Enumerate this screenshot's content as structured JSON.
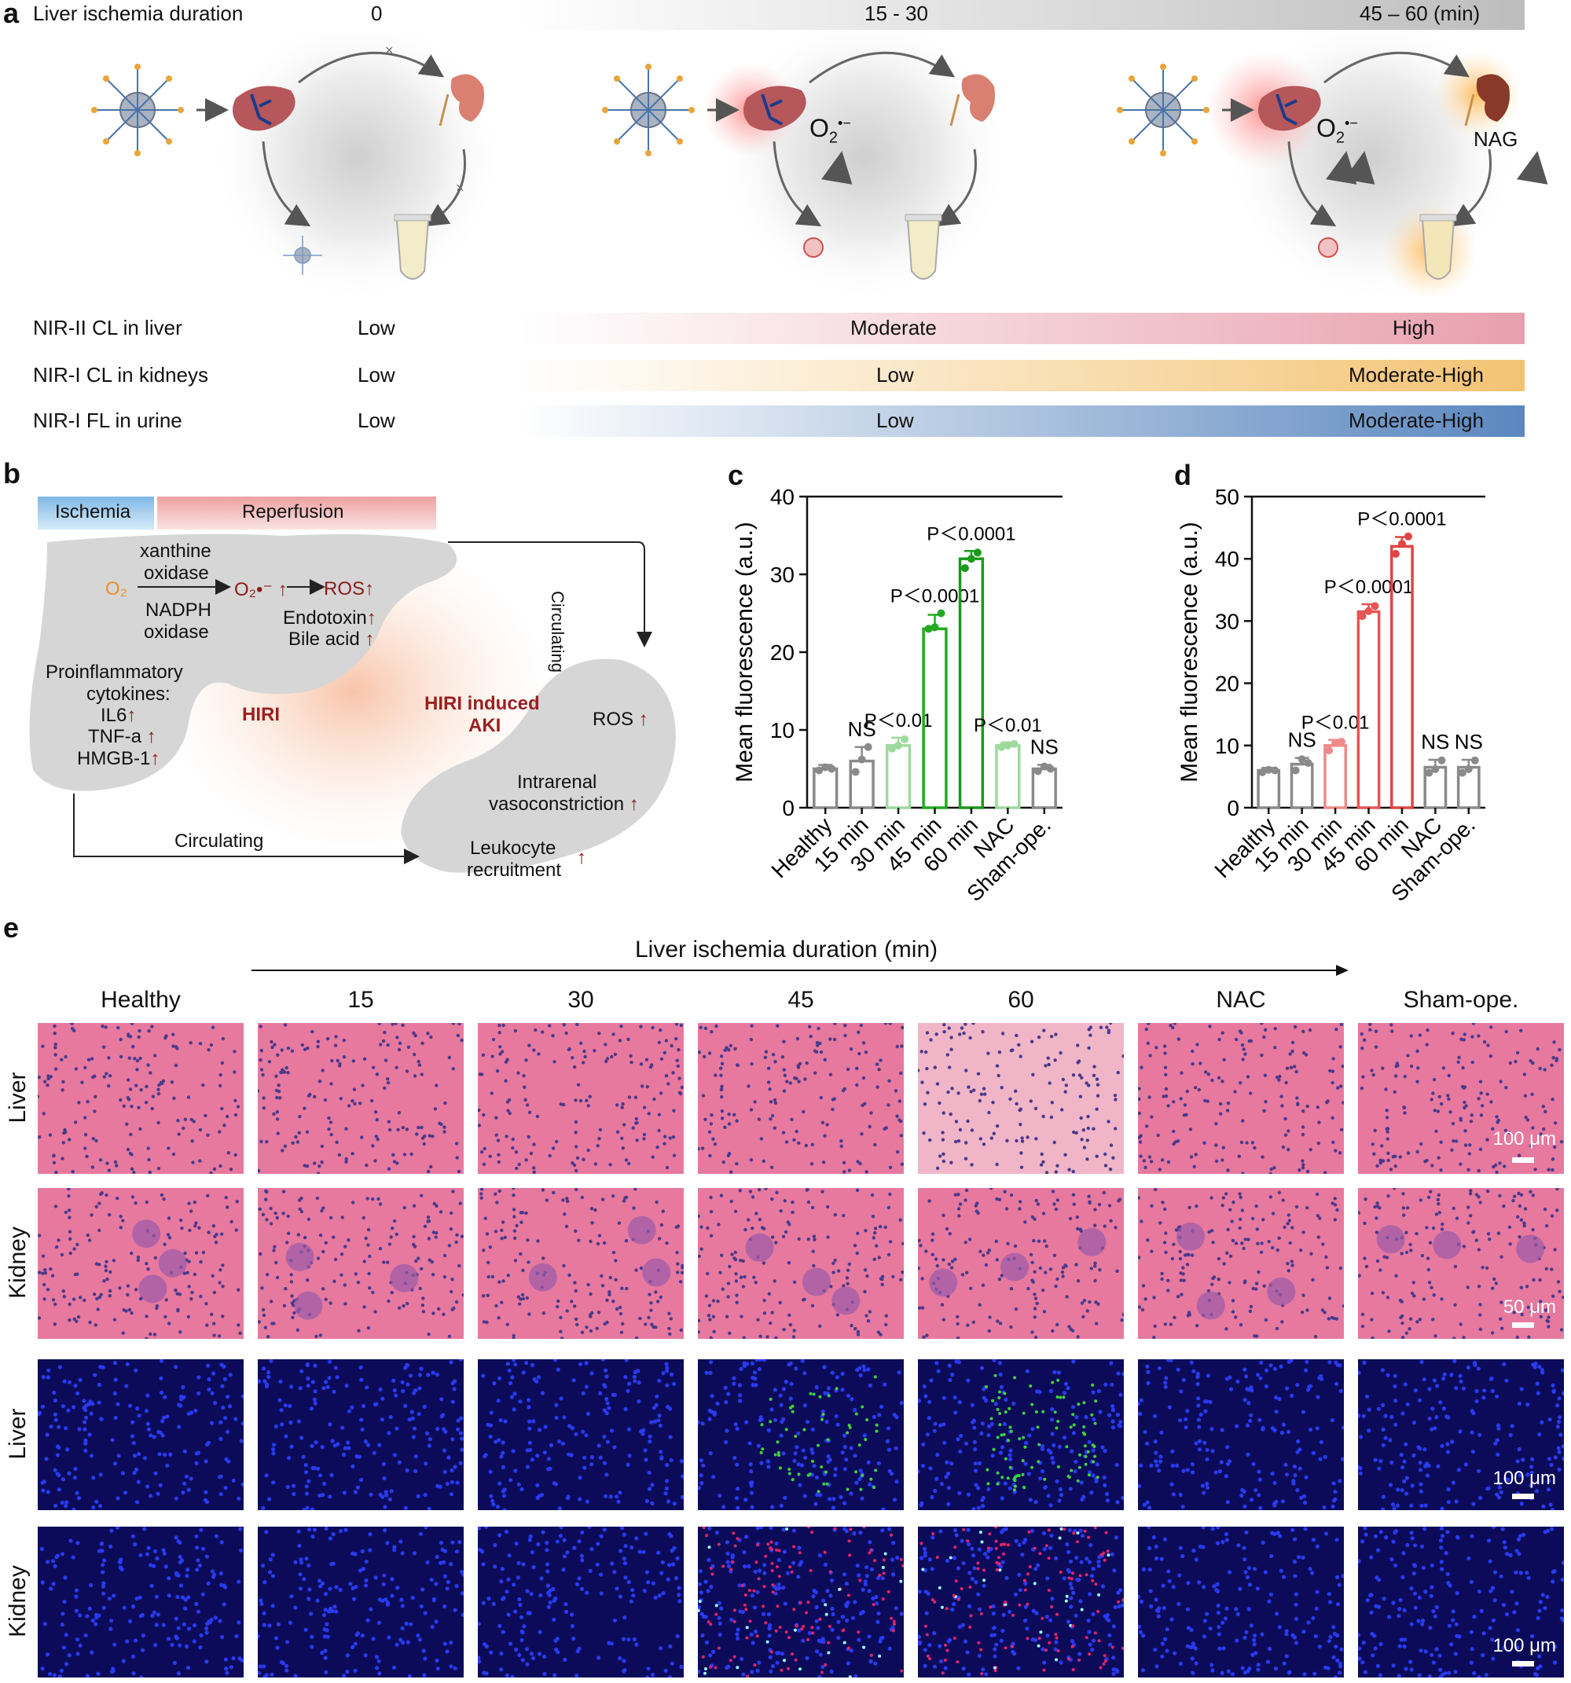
{
  "panel_a": {
    "letter": "a",
    "duration_label": "Liver ischemia duration",
    "stages": [
      "0",
      "15 - 30",
      "45 – 60 (min)"
    ],
    "o2_label": "O",
    "o2_sub": "2",
    "o2_sup": "•−",
    "nag_label": "NAG",
    "rows": [
      {
        "label": "NIR-II CL in liver",
        "values": [
          "Low",
          "Moderate",
          "High"
        ],
        "colors": [
          "#ffffff",
          "#e8a0ad"
        ]
      },
      {
        "label": "NIR-I CL in kidneys",
        "values": [
          "Low",
          "Low",
          "Moderate-High"
        ],
        "colors": [
          "#ffffff",
          "#f3c373"
        ]
      },
      {
        "label": "NIR-I FL in urine",
        "values": [
          "Low",
          "Low",
          "Moderate-High"
        ],
        "colors": [
          "#ffffff",
          "#5b87bf"
        ]
      }
    ]
  },
  "panel_b": {
    "letter": "b",
    "ischemia": "Ischemia",
    "reperfusion": "Reperfusion",
    "xanthine": "xanthine",
    "oxidase1": "oxidase",
    "o2": "O₂",
    "o2rad": "O₂•⁻",
    "ros": "ROS",
    "nadph": "NADPH",
    "oxidase2": "oxidase",
    "endotoxin": "Endotoxin",
    "bile": "Bile acid",
    "proinflam": "Proinflammatory",
    "cytokines": "cytokines:",
    "il6": "IL6",
    "tnf": "TNF-a",
    "hmgb": "HMGB-1",
    "hiri": "HIRI",
    "hiri_aki1": "HIRI induced",
    "hiri_aki2": "AKI",
    "circ_right": "Circulating",
    "circ_bottom": "Circulating",
    "ros_kidney": "ROS",
    "intrarenal": "Intrarenal",
    "vasocon": "vasoconstriction",
    "leuko": "Leukocyte",
    "recruit": "recruitment",
    "arrow_up": "↑"
  },
  "chart_data": [
    {
      "panel": "c",
      "type": "bar",
      "ylabel": "Mean fluorescence (a.u.)",
      "ylim": [
        0,
        40
      ],
      "yticks": [
        0,
        10,
        20,
        30,
        40
      ],
      "categories": [
        "Healthy",
        "15 min",
        "30 min",
        "45 min",
        "60 min",
        "NAC",
        "Sham-ope."
      ],
      "values": [
        5,
        6,
        8,
        23,
        32,
        8,
        5
      ],
      "errors": [
        0.5,
        1.8,
        1.0,
        1.8,
        1.0,
        0.4,
        0.5
      ],
      "points": [
        [
          4.8,
          5.2,
          5.0
        ],
        [
          4.6,
          6.2,
          7.8
        ],
        [
          7.6,
          8.0,
          8.8
        ],
        [
          23.0,
          23.2,
          25.0
        ],
        [
          30.8,
          32.0,
          32.8
        ],
        [
          7.8,
          8.0,
          8.2
        ],
        [
          4.7,
          5.3,
          5.0
        ]
      ],
      "labels": [
        "",
        "NS",
        "P＜0.01",
        "P＜0.0001",
        "P＜0.0001",
        "P＜0.01",
        "NS"
      ],
      "colors": [
        "#8a8a8a",
        "#8a8a8a",
        "#9ed99e",
        "#22aa22",
        "#1a9a1a",
        "#9ed99e",
        "#8a8a8a"
      ]
    },
    {
      "panel": "d",
      "type": "bar",
      "ylabel": "Mean fluorescence (a.u.)",
      "ylim": [
        0,
        50
      ],
      "yticks": [
        0,
        10,
        20,
        30,
        40,
        50
      ],
      "categories": [
        "Healthy",
        "15 min",
        "30 min",
        "45 min",
        "60 min",
        "NAC",
        "Sham-ope."
      ],
      "values": [
        6,
        7,
        10,
        31.5,
        42,
        6.5,
        6.5
      ],
      "errors": [
        0.4,
        1.0,
        0.9,
        1.2,
        1.5,
        1.2,
        1.2
      ],
      "points": [
        [
          5.7,
          6.1,
          6.0
        ],
        [
          6.0,
          7.8,
          7.2
        ],
        [
          9.2,
          10.4,
          10.6
        ],
        [
          30.8,
          31.6,
          32.4
        ],
        [
          40.8,
          42.4,
          43.6
        ],
        [
          5.6,
          6.2,
          7.6
        ],
        [
          5.6,
          6.2,
          7.6
        ]
      ],
      "labels": [
        "",
        "NS",
        "P＜0.01",
        "P＜0.0001",
        "P＜0.0001",
        "NS",
        "NS"
      ],
      "colors": [
        "#8a8a8a",
        "#8a8a8a",
        "#ef8a8a",
        "#e55555",
        "#e04444",
        "#8a8a8a",
        "#8a8a8a"
      ]
    }
  ],
  "panel_c_letter": "c",
  "panel_d_letter": "d",
  "panel_e": {
    "letter": "e",
    "duration_label": "Liver ischemia duration (min)",
    "columns": [
      "Healthy",
      "15",
      "30",
      "45",
      "60",
      "NAC",
      "Sham-ope."
    ],
    "rows": [
      {
        "label": "Liver",
        "kind": "he_liver",
        "scale": "100 μm"
      },
      {
        "label": "Kidney",
        "kind": "he_kidney",
        "scale": "50 μm"
      },
      {
        "label": "Liver",
        "kind": "fl_liver",
        "scale": "100 μm"
      },
      {
        "label": "Kidney",
        "kind": "fl_kidney",
        "scale": "100 μm"
      }
    ]
  }
}
